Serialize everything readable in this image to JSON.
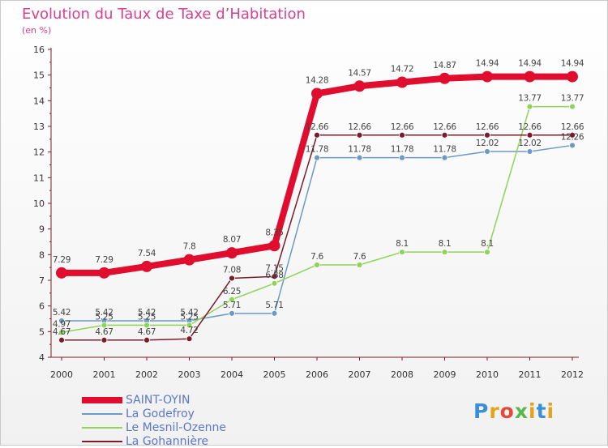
{
  "title": "Evolution du Taux de Taxe d’Habitation",
  "unit": "(en %)",
  "logo": "Proxiti",
  "colors": {
    "title": "#d9408f",
    "axis": "#7a1c2c",
    "legend_text": "#5b78c9"
  },
  "chart_data": {
    "type": "line",
    "x": [
      "2000",
      "2001",
      "2002",
      "2003",
      "2004",
      "2005",
      "2006",
      "2007",
      "2008",
      "2009",
      "2010",
      "2011",
      "2012"
    ],
    "ylim": [
      4,
      16
    ],
    "yticks": [
      4,
      5,
      6,
      7,
      8,
      9,
      10,
      11,
      12,
      13,
      14,
      15,
      16
    ],
    "grid": false,
    "legend_position": "bottom-left",
    "series": [
      {
        "name": "SAINT-OYIN",
        "color": "#e00d2e",
        "width": 8,
        "marker_r": 7,
        "values": [
          7.29,
          7.29,
          7.54,
          7.8,
          8.07,
          8.35,
          14.28,
          14.57,
          14.72,
          14.87,
          14.94,
          14.94,
          14.94
        ],
        "labels": [
          "7.29",
          "7.29",
          "7.54",
          "7.8",
          "8.07",
          "8.35",
          "14.28",
          "14.57",
          "14.72",
          "14.87",
          "14.94",
          "14.94",
          "14.94"
        ]
      },
      {
        "name": "La Godefroy",
        "color": "#6b9ac6",
        "width": 1.5,
        "marker_r": 3.5,
        "values": [
          5.42,
          5.42,
          5.42,
          5.42,
          5.71,
          5.71,
          11.78,
          11.78,
          11.78,
          11.78,
          12.02,
          12.02,
          12.26
        ],
        "labels": [
          "5.42",
          "5.42",
          "5.42",
          "5.42",
          "5.71",
          "5.71",
          "11.78",
          "11.78",
          "11.78",
          "11.78",
          "12.02",
          "12.02",
          "12.26"
        ]
      },
      {
        "name": "Le Mesnil-Ozenne",
        "color": "#8fd45a",
        "width": 1.5,
        "marker_r": 3.5,
        "values": [
          4.97,
          5.25,
          5.25,
          5.25,
          6.25,
          6.88,
          7.6,
          7.6,
          8.1,
          8.1,
          8.1,
          13.77,
          13.77
        ],
        "labels": [
          "4.97",
          "5.25",
          "5.25",
          "5.25",
          "6.25",
          "6.88",
          "7.6",
          "7.6",
          "8.1",
          "8.1",
          "8.1",
          "13.77",
          "13.77"
        ]
      },
      {
        "name": "La Gohannière",
        "color": "#7a1c2c",
        "width": 1.5,
        "marker_r": 3.5,
        "values": [
          4.67,
          4.67,
          4.67,
          4.72,
          7.08,
          7.15,
          12.66,
          12.66,
          12.66,
          12.66,
          12.66,
          12.66,
          12.66
        ],
        "labels": [
          "4.67",
          "4.67",
          "4.67",
          "4.72",
          "7.08",
          "7.15",
          "12.66",
          "12.66",
          "12.66",
          "12.66",
          "12.66",
          "12.66",
          "12.66"
        ]
      }
    ]
  }
}
